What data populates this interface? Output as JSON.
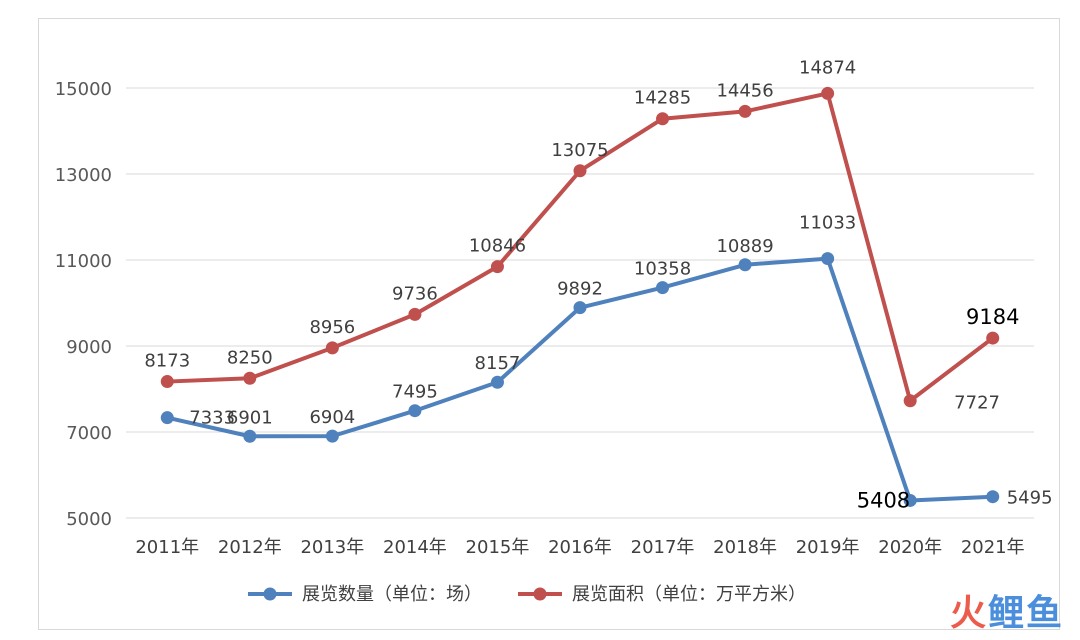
{
  "chart_data": {
    "type": "line",
    "categories": [
      "2011年",
      "2012年",
      "2013年",
      "2014年",
      "2015年",
      "2016年",
      "2017年",
      "2018年",
      "2019年",
      "2020年",
      "2021年"
    ],
    "series": [
      {
        "name": "展览数量（单位：场）",
        "values": [
          7333,
          6901,
          6904,
          7495,
          8157,
          9892,
          10358,
          10889,
          11033,
          5408,
          5495
        ],
        "color": "#4f81bd"
      },
      {
        "name": "展览面积（单位：万平方米）",
        "values": [
          8173,
          8250,
          8956,
          9736,
          10846,
          13075,
          14285,
          14456,
          14874,
          7727,
          9184
        ],
        "color": "#c0504d"
      }
    ],
    "ylim": [
      5000,
      15000
    ],
    "yticks": [
      5000,
      7000,
      9000,
      11000,
      13000,
      15000
    ],
    "grid": true,
    "legend_position": "bottom",
    "title": "",
    "xlabel": "",
    "ylabel": ""
  },
  "watermark": {
    "char1": "火",
    "char2": "鲤鱼"
  }
}
